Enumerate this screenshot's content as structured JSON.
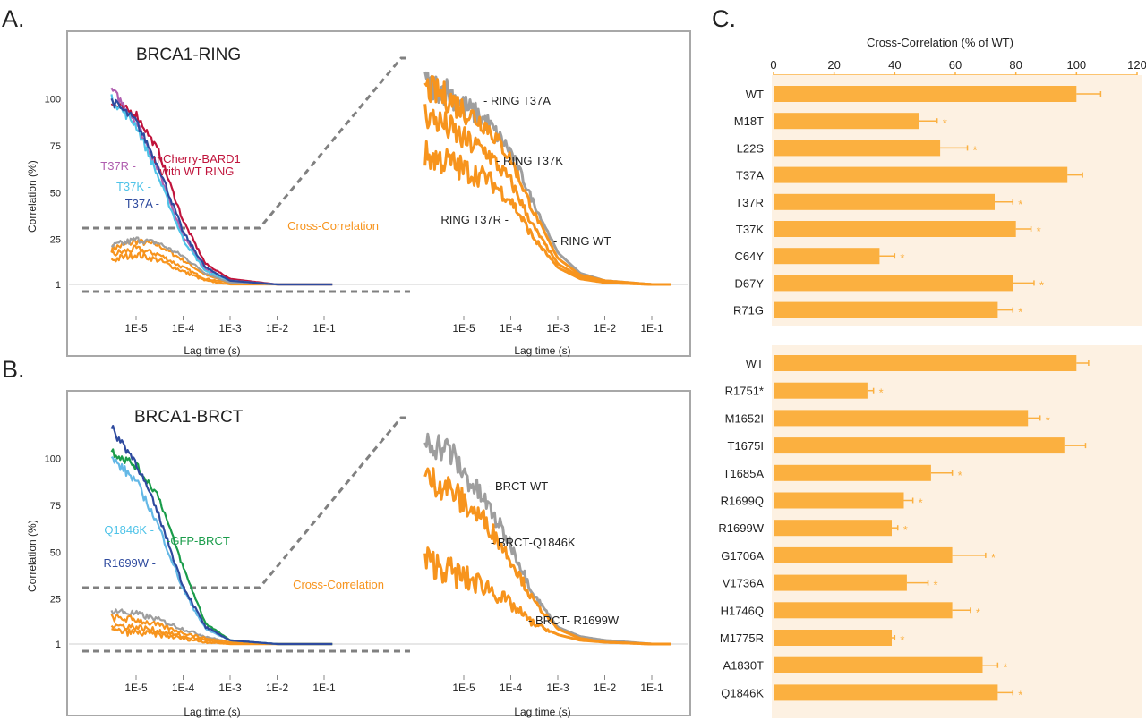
{
  "colors": {
    "orange": "#f7941d",
    "gray": "#9e9e9e",
    "dashed": "#808080",
    "red": "#c0143c",
    "purple": "#b05fb0",
    "cyan": "#4fc3e8",
    "blue": "#2e4a9e",
    "lightblue": "#64b8e6",
    "green": "#1a9c4a",
    "panel_bg": "#fdf1e2",
    "bar": "#fbb040"
  },
  "panel_labels": {
    "a": "A.",
    "b": "B.",
    "c": "C."
  },
  "chart_data": [
    {
      "type": "line",
      "panel": "A",
      "title": "BRCA1-RING",
      "ylabel": "Correlation (%)",
      "xlabel": "Lag time (s)",
      "x_scale": "log",
      "yticks": [
        "100",
        "75",
        "50",
        "25",
        "1"
      ],
      "xticks_left": [
        "1E-5",
        "1E-4",
        "1E-3",
        "1E-2",
        "1E-1"
      ],
      "xticks_right": [
        "1E-5",
        "1E-4",
        "1E-3",
        "1E-2",
        "1E-1"
      ],
      "annotations_left": [
        {
          "text": "mCherry-BARD1",
          "color": "red"
        },
        {
          "text": "with WT RING",
          "color": "red"
        },
        {
          "text": "T37R -",
          "color": "purple"
        },
        {
          "text": "T37K -",
          "color": "cyan"
        },
        {
          "text": "T37A -",
          "color": "blue"
        },
        {
          "text": "Cross-Correlation",
          "color": "orange"
        }
      ],
      "annotations_right": [
        "- RING T37A",
        "- RING T37K",
        "RING T37R -",
        "- RING WT"
      ],
      "auto_series": [
        {
          "name": "mCherry-BARD1 with WT RING",
          "color": "red",
          "x": [
            3e-06,
            1e-05,
            3e-05,
            0.0001,
            0.0003,
            0.001,
            0.01,
            0.15
          ],
          "y": [
            97,
            92,
            72,
            35,
            12,
            4,
            1,
            1
          ]
        },
        {
          "name": "T37R",
          "color": "purple",
          "x": [
            3e-06,
            1e-05,
            3e-05,
            0.0001,
            0.0003,
            0.001,
            0.01,
            0.15
          ],
          "y": [
            105,
            88,
            62,
            27,
            9,
            3,
            1,
            1
          ]
        },
        {
          "name": "T37K",
          "color": "cyan",
          "x": [
            3e-06,
            1e-05,
            3e-05,
            0.0001,
            0.0003,
            0.001,
            0.01,
            0.15
          ],
          "y": [
            100,
            86,
            58,
            25,
            8,
            3,
            1,
            1
          ]
        },
        {
          "name": "T37A",
          "color": "blue",
          "x": [
            3e-06,
            1e-05,
            3e-05,
            0.0001,
            0.0003,
            0.001,
            0.01,
            0.15
          ],
          "y": [
            99,
            88,
            64,
            29,
            10,
            3,
            1,
            1
          ]
        }
      ],
      "cross_left": [
        {
          "color": "orange",
          "x": [
            3e-06,
            1e-05,
            3e-05,
            0.0001,
            0.0003,
            0.001,
            0.01,
            0.15
          ],
          "y": [
            20,
            24,
            22,
            14,
            6,
            2,
            1,
            1
          ]
        },
        {
          "color": "orange",
          "x": [
            3e-06,
            1e-05,
            3e-05,
            0.0001,
            0.0003,
            0.001,
            0.01,
            0.15
          ],
          "y": [
            17,
            20,
            17,
            10,
            4,
            2,
            1,
            1
          ]
        },
        {
          "color": "orange",
          "x": [
            3e-06,
            1e-05,
            3e-05,
            0.0001,
            0.0003,
            0.001,
            0.01,
            0.15
          ],
          "y": [
            14,
            17,
            14,
            8,
            3,
            1,
            1,
            1
          ]
        },
        {
          "color": "gray",
          "x": [
            3e-06,
            1e-05,
            3e-05,
            0.0001,
            0.0003,
            0.001,
            0.01,
            0.15
          ],
          "y": [
            21,
            25,
            23,
            16,
            7,
            2,
            1,
            1
          ]
        }
      ],
      "cross_right": [
        {
          "name": "RING WT",
          "color": "gray",
          "x": [
            1.5e-06,
            5e-06,
            1e-05,
            3e-05,
            0.0001,
            0.0003,
            0.001,
            0.003,
            0.01,
            0.1,
            0.25
          ],
          "y": [
            108,
            104,
            96,
            88,
            72,
            45,
            18,
            7,
            3,
            1,
            1
          ]
        },
        {
          "name": "RING T37A",
          "color": "orange",
          "x": [
            1.5e-06,
            5e-06,
            1e-05,
            3e-05,
            0.0001,
            0.0003,
            0.001,
            0.003,
            0.01,
            0.1,
            0.25
          ],
          "y": [
            106,
            100,
            94,
            86,
            68,
            40,
            15,
            6,
            3,
            1,
            1
          ]
        },
        {
          "name": "RING T37K",
          "color": "orange",
          "x": [
            1.5e-06,
            5e-06,
            1e-05,
            3e-05,
            0.0001,
            0.0003,
            0.001,
            0.003,
            0.01,
            0.1,
            0.25
          ],
          "y": [
            92,
            84,
            78,
            72,
            56,
            32,
            12,
            5,
            2,
            1,
            1
          ]
        },
        {
          "name": "RING T37R",
          "color": "orange",
          "x": [
            1.5e-06,
            5e-06,
            1e-05,
            3e-05,
            0.0001,
            0.0003,
            0.001,
            0.003,
            0.01,
            0.1,
            0.25
          ],
          "y": [
            70,
            66,
            62,
            58,
            46,
            26,
            10,
            4,
            2,
            1,
            1
          ]
        }
      ]
    },
    {
      "type": "line",
      "panel": "B",
      "title": "BRCA1-BRCT",
      "ylabel": "Correlation (%)",
      "xlabel": "Lag time (s)",
      "x_scale": "log",
      "yticks": [
        "100",
        "75",
        "50",
        "25",
        "1"
      ],
      "xticks_left": [
        "1E-5",
        "1E-4",
        "1E-3",
        "1E-2",
        "1E-1"
      ],
      "xticks_right": [
        "1E-5",
        "1E-4",
        "1E-3",
        "1E-2",
        "1E-1"
      ],
      "annotations_left": [
        {
          "text": "Q1846K -",
          "color": "cyan"
        },
        {
          "text": "-GFP-BRCT",
          "color": "green"
        },
        {
          "text": "R1699W -",
          "color": "blue"
        },
        {
          "text": "Cross-Correlation",
          "color": "orange"
        }
      ],
      "annotations_right": [
        "- BRCT-WT",
        "- BRCT-Q1846K",
        "- BRCT- R1699W"
      ],
      "auto_series": [
        {
          "name": "GFP-BRCT",
          "color": "green",
          "x": [
            3e-06,
            1e-05,
            3e-05,
            0.0001,
            0.0003,
            0.001,
            0.01,
            0.15
          ],
          "y": [
            104,
            96,
            80,
            42,
            12,
            3,
            1,
            1
          ]
        },
        {
          "name": "Q1846K",
          "color": "lightblue",
          "x": [
            3e-06,
            1e-05,
            3e-05,
            0.0001,
            0.0003,
            0.001,
            0.01,
            0.15
          ],
          "y": [
            100,
            88,
            64,
            30,
            9,
            3,
            1,
            1
          ]
        },
        {
          "name": "R1699W",
          "color": "blue",
          "x": [
            3e-06,
            1e-05,
            3e-05,
            0.0001,
            0.0003,
            0.001,
            0.01,
            0.15
          ],
          "y": [
            116,
            98,
            70,
            32,
            10,
            3,
            1,
            1
          ]
        }
      ],
      "cross_left": [
        {
          "color": "gray",
          "x": [
            3e-06,
            1e-05,
            3e-05,
            0.0001,
            0.0003,
            0.001,
            0.01,
            0.15
          ],
          "y": [
            19,
            17,
            14,
            9,
            5,
            2,
            1,
            1
          ]
        },
        {
          "color": "orange",
          "x": [
            3e-06,
            1e-05,
            3e-05,
            0.0001,
            0.0003,
            0.001,
            0.01,
            0.15
          ],
          "y": [
            15,
            14,
            11,
            7,
            4,
            2,
            1,
            1
          ]
        },
        {
          "color": "orange",
          "x": [
            3e-06,
            1e-05,
            3e-05,
            0.0001,
            0.0003,
            0.001,
            0.01,
            0.15
          ],
          "y": [
            11,
            10,
            8,
            5,
            3,
            1,
            1,
            1
          ]
        },
        {
          "color": "orange",
          "x": [
            3e-06,
            1e-05,
            3e-05,
            0.0001,
            0.0003,
            0.001,
            0.01,
            0.15
          ],
          "y": [
            8,
            7,
            6,
            4,
            2,
            1,
            1,
            1
          ]
        }
      ],
      "cross_right": [
        {
          "name": "BRCT-WT",
          "color": "gray",
          "x": [
            1.5e-06,
            5e-06,
            1e-05,
            3e-05,
            0.0001,
            0.0003,
            0.001,
            0.003,
            0.01,
            0.1,
            0.25
          ],
          "y": [
            110,
            104,
            92,
            76,
            54,
            28,
            10,
            5,
            3,
            1,
            1
          ]
        },
        {
          "name": "BRCT-Q1846K",
          "color": "orange",
          "x": [
            1.5e-06,
            5e-06,
            1e-05,
            3e-05,
            0.0001,
            0.0003,
            0.001,
            0.003,
            0.01,
            0.1,
            0.25
          ],
          "y": [
            90,
            84,
            76,
            66,
            46,
            24,
            9,
            4,
            2,
            1,
            1
          ]
        },
        {
          "name": "BRCT- R1699W",
          "color": "orange",
          "x": [
            1.5e-06,
            5e-06,
            1e-05,
            3e-05,
            0.0001,
            0.0003,
            0.001,
            0.003,
            0.01,
            0.1,
            0.25
          ],
          "y": [
            46,
            40,
            36,
            32,
            22,
            12,
            6,
            3,
            2,
            1,
            1
          ]
        }
      ]
    },
    {
      "type": "bar",
      "panel": "C",
      "orientation": "horizontal",
      "xlabel": "Cross-Correlation (% of WT)",
      "xlim": [
        0,
        120
      ],
      "xticks": [
        "0",
        "20",
        "40",
        "60",
        "80",
        "100",
        "120"
      ],
      "groups": [
        {
          "categories": [
            "WT",
            "M18T",
            "L22S",
            "T37A",
            "T37R",
            "T37K",
            "C64Y",
            "D67Y",
            "R71G"
          ],
          "values": [
            100,
            48,
            55,
            97,
            73,
            80,
            35,
            79,
            74
          ],
          "errors": [
            8,
            6,
            9,
            5,
            6,
            5,
            5,
            7,
            5
          ],
          "significant": [
            false,
            true,
            true,
            false,
            true,
            true,
            true,
            true,
            true
          ]
        },
        {
          "categories": [
            "WT",
            "R1751*",
            "M1652I",
            "T1675I",
            "T1685A",
            "R1699Q",
            "R1699W",
            "G1706A",
            "V1736A",
            "H1746Q",
            "M1775R",
            "A1830T",
            "Q1846K"
          ],
          "values": [
            100,
            31,
            84,
            96,
            52,
            43,
            39,
            59,
            44,
            59,
            39,
            69,
            74
          ],
          "errors": [
            4,
            2,
            4,
            7,
            7,
            3,
            2,
            11,
            7,
            6,
            1,
            5,
            5
          ],
          "significant": [
            false,
            true,
            true,
            false,
            true,
            true,
            true,
            true,
            true,
            true,
            true,
            true,
            true
          ]
        }
      ],
      "marker": "*"
    }
  ]
}
